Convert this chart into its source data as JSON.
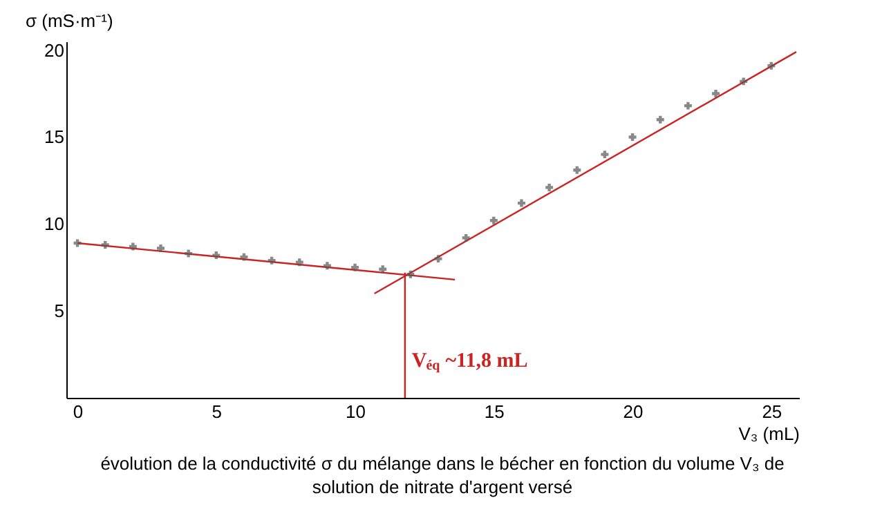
{
  "chart_data": {
    "type": "scatter",
    "xlabel": "V₃ (mL)",
    "ylabel": "σ (mS·m⁻¹)",
    "xlim": [
      -0.4,
      26
    ],
    "ylim": [
      0,
      20.5
    ],
    "xticks": [
      0,
      5,
      10,
      15,
      20,
      25
    ],
    "yticks": [
      5,
      10,
      15,
      20
    ],
    "grid": false,
    "series": [
      {
        "marker": "cross",
        "color": "#555555",
        "x": [
          0,
          1,
          2,
          3,
          4,
          5,
          6,
          7,
          8,
          9,
          10,
          11,
          12,
          13,
          14,
          15,
          16,
          17,
          18,
          19,
          20,
          21,
          22,
          23,
          24,
          25
        ],
        "values": [
          8.9,
          8.8,
          8.7,
          8.6,
          8.3,
          8.2,
          8.1,
          7.9,
          7.8,
          7.6,
          7.5,
          7.4,
          7.1,
          8.0,
          9.2,
          10.2,
          11.2,
          12.1,
          13.1,
          14.0,
          15.0,
          16.0,
          16.8,
          17.5,
          18.2,
          19.1
        ]
      },
      {
        "type": "line",
        "line_style": "solid",
        "color": "#cc2222",
        "x": [
          0,
          13.6
        ],
        "values": [
          8.9,
          6.8
        ]
      },
      {
        "type": "line",
        "line_style": "solid",
        "color": "#cc2222",
        "x": [
          10.7,
          25.9
        ],
        "values": [
          6.0,
          19.9
        ]
      },
      {
        "type": "line",
        "line_style": "solid",
        "color": "#cc2222",
        "x": [
          11.8,
          11.8
        ],
        "values": [
          0,
          7.2
        ]
      }
    ],
    "annotations": [
      {
        "text": "V$_{éq}$ ~11,8 mL",
        "x": 11.8,
        "y": 2.2
      },
      "évolution de la conductivité σ du mélange dans le bécher en fonction du volume V₃ de solution de nitrate d'argent versé"
    ]
  }
}
